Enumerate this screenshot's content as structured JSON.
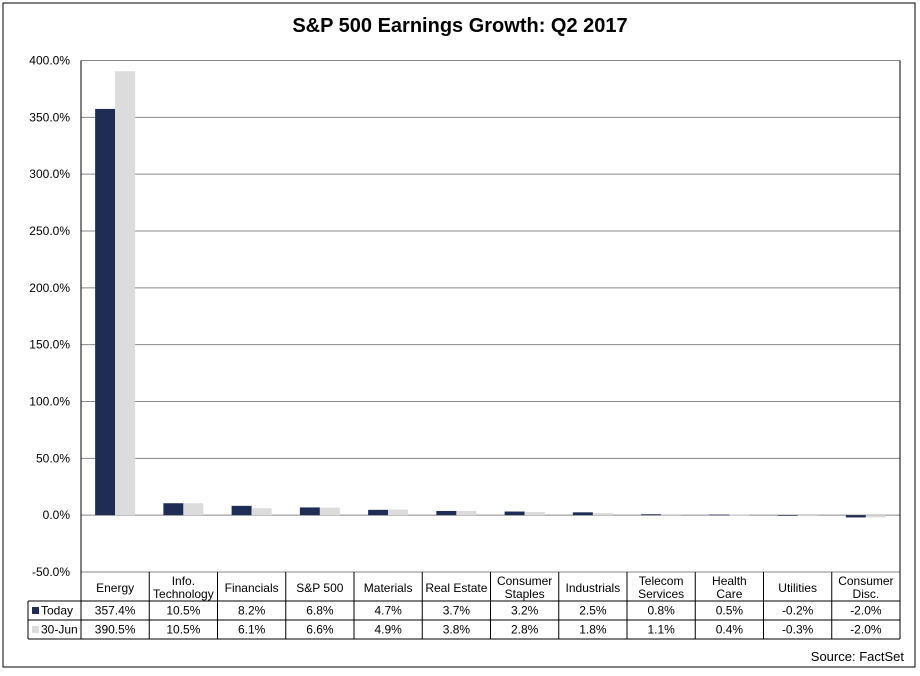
{
  "chart_data": {
    "type": "bar",
    "title": "S&P 500 Earnings Growth: Q2 2017",
    "source": "Source: FactSet",
    "categories": [
      [
        "Energy"
      ],
      [
        "Info.",
        "Technology"
      ],
      [
        "Financials"
      ],
      [
        "S&P 500"
      ],
      [
        "Materials"
      ],
      [
        "Real Estate"
      ],
      [
        "Consumer",
        "Staples"
      ],
      [
        "Industrials"
      ],
      [
        "Telecom",
        "Services"
      ],
      [
        "Health",
        "Care"
      ],
      [
        "Utilities"
      ],
      [
        "Consumer",
        "Disc."
      ]
    ],
    "series": [
      {
        "name": "Today",
        "color": "#1f2d55",
        "values": [
          357.4,
          10.5,
          8.2,
          6.8,
          4.7,
          3.7,
          3.2,
          2.5,
          0.8,
          0.5,
          -0.2,
          -2.0
        ],
        "labels": [
          "357.4%",
          "10.5%",
          "8.2%",
          "6.8%",
          "4.7%",
          "3.7%",
          "3.2%",
          "2.5%",
          "0.8%",
          "0.5%",
          "-0.2%",
          "-2.0%"
        ]
      },
      {
        "name": "30-Jun",
        "color": "#dcdcdc",
        "values": [
          390.5,
          10.5,
          6.1,
          6.6,
          4.9,
          3.8,
          2.8,
          1.8,
          1.1,
          0.4,
          -0.3,
          -2.0
        ],
        "labels": [
          "390.5%",
          "10.5%",
          "6.1%",
          "6.6%",
          "4.9%",
          "3.8%",
          "2.8%",
          "1.8%",
          "1.1%",
          "0.4%",
          "-0.3%",
          "-2.0%"
        ]
      }
    ],
    "y_ticks": [
      "-50.0%",
      "0.0%",
      "50.0%",
      "100.0%",
      "150.0%",
      "200.0%",
      "250.0%",
      "300.0%",
      "350.0%",
      "400.0%"
    ],
    "ylim": [
      -50,
      400
    ],
    "grid": true,
    "legend": "data-table"
  }
}
